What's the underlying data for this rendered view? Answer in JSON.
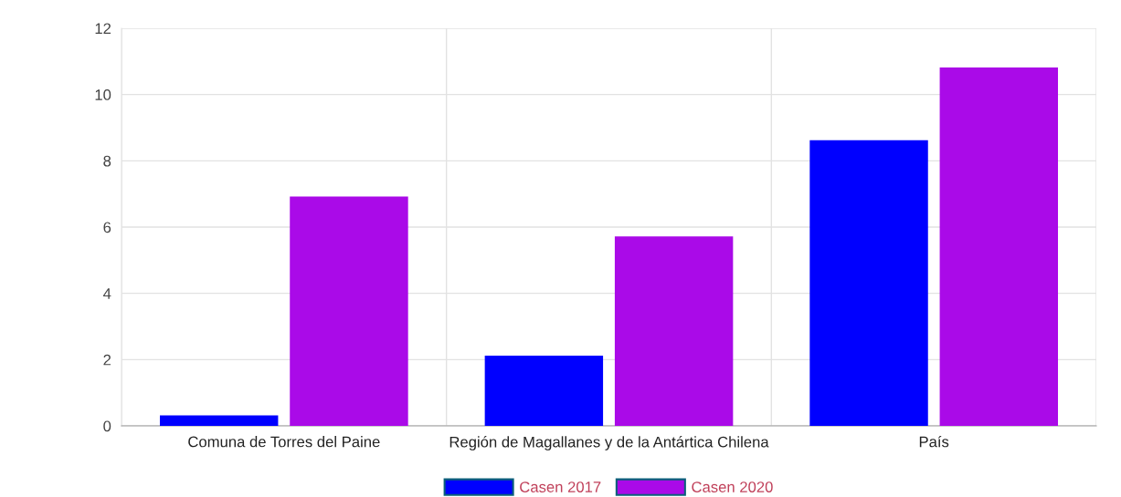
{
  "chart_data": {
    "type": "bar",
    "categories": [
      "Comuna de Torres del Paine",
      "Región de Magallanes y de la Antártica Chilena",
      "País"
    ],
    "series": [
      {
        "name": "Casen 2017",
        "color": "#0000ff",
        "values": [
          0.3,
          2.1,
          8.6
        ]
      },
      {
        "name": "Casen 2020",
        "color": "#aa0ae8",
        "values": [
          6.9,
          5.7,
          10.8
        ]
      }
    ],
    "ylim": [
      0,
      12
    ],
    "yticks": [
      0,
      2,
      4,
      6,
      8,
      10,
      12
    ],
    "grid": true,
    "legend": "bottom"
  }
}
